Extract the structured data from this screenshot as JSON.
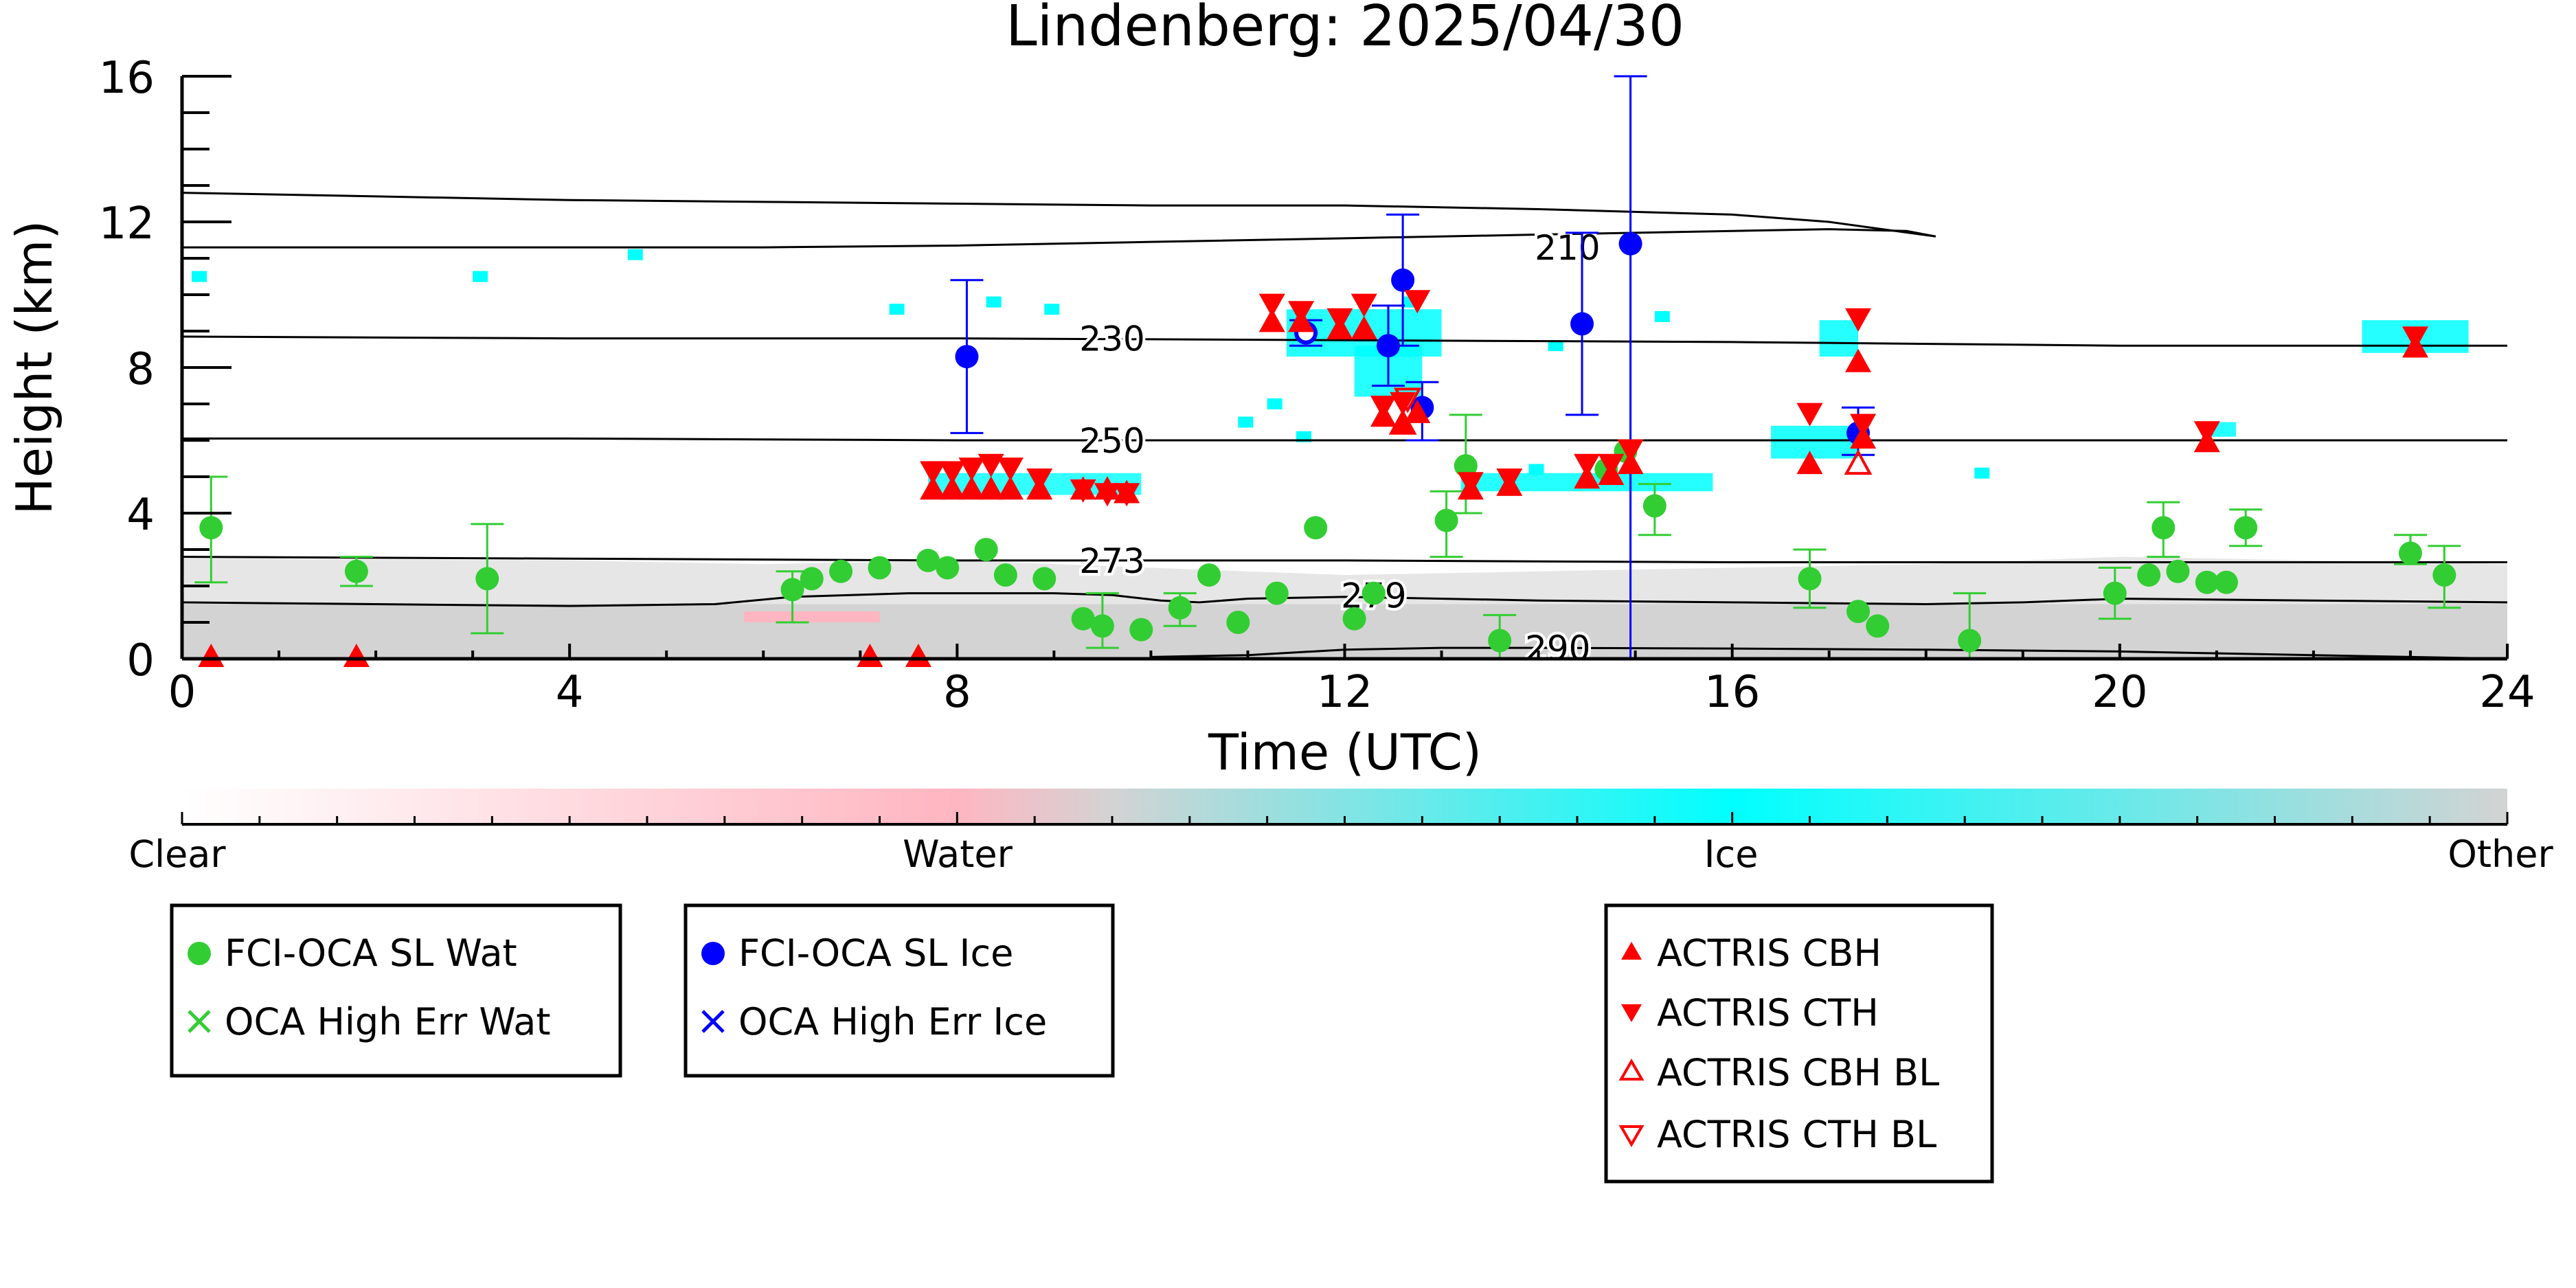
{
  "chart_data": {
    "type": "scatter",
    "title": "Lindenberg: 2025/04/30",
    "xlabel": "Time (UTC)",
    "ylabel": "Height (km)",
    "xlim": [
      0,
      24
    ],
    "ylim": [
      0,
      16
    ],
    "x_ticks": [
      0,
      4,
      8,
      12,
      16,
      20,
      24
    ],
    "y_ticks": [
      0,
      4,
      8,
      12,
      16
    ],
    "grid": false,
    "colorbar": {
      "labels": [
        "Clear",
        "Water",
        "Ice",
        "Other"
      ],
      "colors": [
        "#ffffff",
        "#ffb6c1",
        "#00ffff",
        "#d3d3d3"
      ]
    },
    "isotherms": [
      {
        "label": "210",
        "label_x": 14.3,
        "label_y": 11.3,
        "x": [
          0,
          2,
          4,
          6,
          8,
          10,
          12,
          14,
          16,
          17,
          17.8,
          18.1
        ],
        "y": [
          11.3,
          11.3,
          11.3,
          11.3,
          11.35,
          11.45,
          11.55,
          11.65,
          11.75,
          11.8,
          11.75,
          11.6
        ]
      },
      {
        "label": "230",
        "label_x": 9.6,
        "label_y": 8.8,
        "x": [
          0,
          4,
          8,
          12,
          16,
          20,
          24
        ],
        "y": [
          8.85,
          8.8,
          8.8,
          8.75,
          8.7,
          8.6,
          8.6
        ]
      },
      {
        "label": "250",
        "label_x": 9.6,
        "label_y": 6.0,
        "x": [
          0,
          4,
          8,
          12,
          16,
          20,
          24
        ],
        "y": [
          6.05,
          6.05,
          6.0,
          6.0,
          6.0,
          6.0,
          6.0
        ]
      },
      {
        "label": "273",
        "label_x": 9.6,
        "label_y": 2.7,
        "x": [
          0,
          4,
          8,
          12,
          16,
          20,
          24
        ],
        "y": [
          2.8,
          2.75,
          2.7,
          2.7,
          2.65,
          2.65,
          2.65
        ]
      },
      {
        "label": "279",
        "label_x": 12.3,
        "label_y": 1.75,
        "x": [
          0,
          2,
          4,
          5.5,
          6.3,
          7.5,
          9,
          9.6,
          10.1,
          10.5,
          11,
          12,
          14,
          16,
          18,
          19,
          20,
          22,
          24
        ],
        "y": [
          1.55,
          1.5,
          1.45,
          1.5,
          1.7,
          1.8,
          1.8,
          1.75,
          1.6,
          1.55,
          1.65,
          1.7,
          1.6,
          1.55,
          1.5,
          1.55,
          1.65,
          1.6,
          1.55
        ]
      },
      {
        "label": "290",
        "label_x": 14.2,
        "label_y": 0.3,
        "x": [
          10,
          11,
          12,
          13,
          14,
          16,
          18,
          20,
          22,
          24
        ],
        "y": [
          0.05,
          0.1,
          0.25,
          0.3,
          0.3,
          0.28,
          0.25,
          0.2,
          0.1,
          0.0
        ]
      }
    ],
    "tropopause": {
      "x": [
        0,
        2,
        4,
        6,
        8,
        10,
        12,
        14,
        16,
        17,
        18.1
      ],
      "y": [
        12.8,
        12.7,
        12.6,
        12.55,
        12.5,
        12.45,
        12.45,
        12.35,
        12.2,
        12.0,
        11.6
      ]
    },
    "series": [
      {
        "name": "FCI-OCA SL Wat",
        "marker": "circle",
        "color": "#32cd32",
        "points": [
          [
            0.3,
            3.6
          ],
          [
            1.8,
            2.4
          ],
          [
            3.15,
            2.2
          ],
          [
            6.3,
            1.9
          ],
          [
            6.5,
            2.2
          ],
          [
            6.8,
            2.4
          ],
          [
            7.2,
            2.5
          ],
          [
            7.7,
            2.7
          ],
          [
            7.9,
            2.5
          ],
          [
            8.3,
            3.0
          ],
          [
            8.5,
            2.3
          ],
          [
            8.9,
            2.2
          ],
          [
            9.3,
            1.1
          ],
          [
            9.5,
            0.9
          ],
          [
            9.9,
            0.8
          ],
          [
            10.3,
            1.4
          ],
          [
            10.6,
            2.3
          ],
          [
            10.9,
            1.0
          ],
          [
            11.3,
            1.8
          ],
          [
            11.7,
            3.6
          ],
          [
            12.1,
            1.1
          ],
          [
            12.3,
            1.8
          ],
          [
            13.05,
            3.8
          ],
          [
            13.25,
            5.3
          ],
          [
            13.6,
            0.5
          ],
          [
            14.7,
            5.2
          ],
          [
            14.9,
            5.7
          ],
          [
            15.2,
            4.2
          ],
          [
            16.8,
            2.2
          ],
          [
            17.3,
            1.3
          ],
          [
            17.5,
            0.9
          ],
          [
            18.45,
            0.5
          ],
          [
            19.95,
            1.8
          ],
          [
            20.3,
            2.3
          ],
          [
            20.45,
            3.6
          ],
          [
            20.6,
            2.4
          ],
          [
            20.9,
            2.1
          ],
          [
            21.1,
            2.1
          ],
          [
            21.3,
            3.6
          ],
          [
            23.0,
            2.9
          ],
          [
            23.35,
            2.3
          ]
        ],
        "errors": [
          [
            0.3,
            2.1,
            5.0
          ],
          [
            1.8,
            2.0,
            2.8
          ],
          [
            3.15,
            0.7,
            3.7
          ],
          [
            6.3,
            1.0,
            2.4
          ],
          [
            9.5,
            0.3,
            1.8
          ],
          [
            10.3,
            0.9,
            1.8
          ],
          [
            13.05,
            2.8,
            4.6
          ],
          [
            13.25,
            4.0,
            6.7
          ],
          [
            13.6,
            0.0,
            1.2
          ],
          [
            15.2,
            3.4,
            4.8
          ],
          [
            16.8,
            1.4,
            3.0
          ],
          [
            18.45,
            0.0,
            1.8
          ],
          [
            19.95,
            1.1,
            2.5
          ],
          [
            20.45,
            2.8,
            4.3
          ],
          [
            21.3,
            3.1,
            4.1
          ],
          [
            23.0,
            2.6,
            3.4
          ],
          [
            23.35,
            1.4,
            3.1
          ]
        ]
      },
      {
        "name": "OCA High Err Wat",
        "marker": "x",
        "color": "#32cd32",
        "points": []
      },
      {
        "name": "FCI-OCA SL Ice",
        "marker": "circle",
        "color": "#0000ff",
        "points": [
          [
            8.1,
            8.3
          ],
          [
            12.45,
            8.6
          ],
          [
            12.6,
            10.4
          ],
          [
            12.8,
            6.9
          ],
          [
            14.45,
            9.2
          ],
          [
            14.95,
            11.4
          ],
          [
            17.3,
            6.2
          ]
        ],
        "hollow_points": [
          [
            11.6,
            8.95
          ]
        ],
        "errors": [
          [
            8.1,
            6.2,
            10.4
          ],
          [
            11.6,
            8.6,
            9.3
          ],
          [
            12.45,
            7.5,
            9.7
          ],
          [
            12.6,
            8.6,
            12.2
          ],
          [
            12.8,
            6.0,
            7.6
          ],
          [
            14.45,
            6.7,
            11.7
          ],
          [
            14.95,
            0.0,
            16.0
          ],
          [
            17.3,
            5.6,
            6.9
          ]
        ]
      },
      {
        "name": "OCA High Err Ice",
        "marker": "x",
        "color": "#0000ff",
        "points": []
      },
      {
        "name": "ACTRIS CBH",
        "marker": "triangle-up",
        "color": "#ff0000",
        "points": [
          [
            0.3,
            0.0
          ],
          [
            1.8,
            0.0
          ],
          [
            7.1,
            0.0
          ],
          [
            7.6,
            0.0
          ],
          [
            7.75,
            4.6
          ],
          [
            7.95,
            4.6
          ],
          [
            8.15,
            4.6
          ],
          [
            8.35,
            4.6
          ],
          [
            8.55,
            4.6
          ],
          [
            8.85,
            4.6
          ],
          [
            9.3,
            4.6
          ],
          [
            9.55,
            4.6
          ],
          [
            9.75,
            4.5
          ],
          [
            11.25,
            9.2
          ],
          [
            11.55,
            9.2
          ],
          [
            11.95,
            9.0
          ],
          [
            12.2,
            9.0
          ],
          [
            12.4,
            6.6
          ],
          [
            12.6,
            6.4
          ],
          [
            12.75,
            6.7
          ],
          [
            13.3,
            4.6
          ],
          [
            13.7,
            4.7
          ],
          [
            14.5,
            4.9
          ],
          [
            14.75,
            5.0
          ],
          [
            14.95,
            5.3
          ],
          [
            16.8,
            5.3
          ],
          [
            17.3,
            8.1
          ],
          [
            17.35,
            6.0
          ],
          [
            20.9,
            5.9
          ],
          [
            23.05,
            8.5
          ]
        ]
      },
      {
        "name": "ACTRIS CTH",
        "marker": "triangle-down",
        "color": "#ff0000",
        "points": [
          [
            7.75,
            5.2
          ],
          [
            7.95,
            5.2
          ],
          [
            8.15,
            5.3
          ],
          [
            8.35,
            5.4
          ],
          [
            8.55,
            5.3
          ],
          [
            8.85,
            5.0
          ],
          [
            9.3,
            4.7
          ],
          [
            9.55,
            4.6
          ],
          [
            9.75,
            4.6
          ],
          [
            11.25,
            9.8
          ],
          [
            11.55,
            9.6
          ],
          [
            11.95,
            9.4
          ],
          [
            12.2,
            9.8
          ],
          [
            12.4,
            7.0
          ],
          [
            12.6,
            7.1
          ],
          [
            12.75,
            9.9
          ],
          [
            13.3,
            4.9
          ],
          [
            13.7,
            5.0
          ],
          [
            14.5,
            5.4
          ],
          [
            14.75,
            5.4
          ],
          [
            14.95,
            5.8
          ],
          [
            16.8,
            6.8
          ],
          [
            17.3,
            9.4
          ],
          [
            17.35,
            6.5
          ],
          [
            20.9,
            6.3
          ],
          [
            23.05,
            8.9
          ]
        ]
      },
      {
        "name": "ACTRIS CBH BL",
        "marker": "triangle-up-open",
        "color": "#ff0000",
        "points": [
          [
            12.6,
            6.4
          ],
          [
            17.3,
            5.3
          ]
        ]
      },
      {
        "name": "ACTRIS CTH BL",
        "marker": "triangle-down-open",
        "color": "#ff0000",
        "points": [
          [
            12.65,
            7.2
          ]
        ]
      }
    ]
  },
  "legend_groups": [
    {
      "items": [
        {
          "label": "FCI-OCA SL Wat",
          "marker": "circle",
          "color": "#32cd32"
        },
        {
          "label": "OCA High Err Wat",
          "marker": "x",
          "color": "#32cd32"
        }
      ]
    },
    {
      "items": [
        {
          "label": "FCI-OCA SL Ice",
          "marker": "circle",
          "color": "#0000ff"
        },
        {
          "label": "OCA High Err Ice",
          "marker": "x",
          "color": "#0000ff"
        }
      ]
    },
    {
      "items": [
        {
          "label": "ACTRIS CBH",
          "marker": "triangle-up",
          "color": "#ff0000"
        },
        {
          "label": "ACTRIS CTH",
          "marker": "triangle-down",
          "color": "#ff0000"
        },
        {
          "label": "ACTRIS CBH BL",
          "marker": "triangle-up-open",
          "color": "#ff0000"
        },
        {
          "label": "ACTRIS CTH BL",
          "marker": "triangle-down-open",
          "color": "#ff0000"
        }
      ]
    }
  ]
}
